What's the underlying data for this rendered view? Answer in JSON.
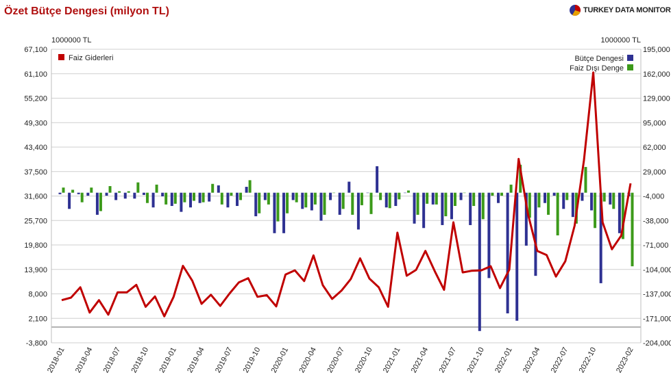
{
  "header": {
    "title": "Özet Bütçe Dengesi (milyon TL)",
    "brand": "TURKEY DATA MONITOR"
  },
  "colors": {
    "title": "#b01010",
    "faiz_giderleri": "#c00000",
    "butce_dengesi": "#2e3192",
    "faiz_disi_denge": "#3c9a1a",
    "grid": "#cfcfcf"
  },
  "chart_data": {
    "type": "bar",
    "title": "Özet Bütçe Dengesi (milyon TL)",
    "left_axis": {
      "unit": "1000000 TL",
      "ticks": [
        "67,100",
        "61,100",
        "55,200",
        "49,300",
        "43,400",
        "37,500",
        "31,600",
        "25,700",
        "19,800",
        "13,900",
        "8,000",
        "2,100",
        "-3,800"
      ],
      "range": [
        -3800,
        67100
      ]
    },
    "right_axis": {
      "unit": "1000000 TL",
      "ticks": [
        "195,000",
        "162,000",
        "129,000",
        "95,000",
        "62,000",
        "29,000",
        "-4,000",
        "-38,000",
        "-71,000",
        "-104,000",
        "-137,000",
        "-171,000",
        "-204,000"
      ],
      "range": [
        -204000,
        195000
      ]
    },
    "x_tick_labels": [
      "2018-01",
      "2018-04",
      "2018-07",
      "2018-10",
      "2019-01",
      "2019-04",
      "2019-07",
      "2019-10",
      "2020-01",
      "2020-04",
      "2020-07",
      "2020-10",
      "2021-01",
      "2021-04",
      "2021-07",
      "2021-10",
      "2022-01",
      "2022-04",
      "2022-07",
      "2022-10",
      "2023-02"
    ],
    "x": [
      "2018-01",
      "2018-02",
      "2018-03",
      "2018-04",
      "2018-05",
      "2018-06",
      "2018-07",
      "2018-08",
      "2018-09",
      "2018-10",
      "2018-11",
      "2018-12",
      "2019-01",
      "2019-02",
      "2019-03",
      "2019-04",
      "2019-05",
      "2019-06",
      "2019-07",
      "2019-08",
      "2019-09",
      "2019-10",
      "2019-11",
      "2019-12",
      "2020-01",
      "2020-02",
      "2020-03",
      "2020-04",
      "2020-05",
      "2020-06",
      "2020-07",
      "2020-08",
      "2020-09",
      "2020-10",
      "2020-11",
      "2020-12",
      "2021-01",
      "2021-02",
      "2021-03",
      "2021-04",
      "2021-05",
      "2021-06",
      "2021-07",
      "2021-08",
      "2021-09",
      "2021-10",
      "2021-11",
      "2021-12",
      "2022-01",
      "2022-02",
      "2022-03",
      "2022-04",
      "2022-05",
      "2022-06",
      "2022-07",
      "2022-08",
      "2022-09",
      "2022-10",
      "2022-11",
      "2022-12",
      "2023-01",
      "2023-02"
    ],
    "legend_left": "top-left",
    "legend_right": "top-right",
    "series": [
      {
        "name": "Faiz Giderleri",
        "kind": "line",
        "axis": "left",
        "values": [
          6500,
          7100,
          9600,
          3500,
          6500,
          3000,
          8400,
          8400,
          10200,
          4900,
          7400,
          2600,
          7300,
          14800,
          11200,
          5600,
          7800,
          5100,
          8100,
          10800,
          11800,
          7300,
          7700,
          5000,
          12700,
          13700,
          11100,
          17300,
          10100,
          6800,
          8800,
          11600,
          16600,
          11700,
          9600,
          4900,
          22800,
          12400,
          13800,
          18400,
          13500,
          9000,
          25300,
          13200,
          13600,
          13700,
          14700,
          9400,
          13900,
          40600,
          27300,
          18400,
          17400,
          12200,
          15900,
          24500,
          40300,
          61500,
          25300,
          18800,
          22100,
          34700
        ]
      },
      {
        "name": "Bütçe Dengesi",
        "kind": "bar",
        "axis": "right",
        "values": [
          -2000,
          -22000,
          -2000,
          -4000,
          -30000,
          -4000,
          -10000,
          -8000,
          -8000,
          -3000,
          -20000,
          -5000,
          -18000,
          -26000,
          -20000,
          -14000,
          -12000,
          10000,
          -20000,
          -18000,
          8000,
          -32000,
          -10000,
          -55000,
          -55000,
          -10000,
          -22000,
          -24000,
          -38000,
          -10000,
          -30000,
          15000,
          -50000,
          0,
          36000,
          -20000,
          -18000,
          0,
          -42000,
          -48000,
          -16000,
          -44000,
          -36000,
          -10000,
          -44000,
          -188000,
          -116000,
          -14000,
          -164000,
          -174000,
          -72000,
          -113000,
          -14000,
          -4000,
          -22000,
          -33000,
          -11000,
          -24000,
          -123000,
          -16000,
          -55000,
          -5000
        ]
      },
      {
        "name": "Faiz Dışı Denge",
        "kind": "bar",
        "axis": "right",
        "values": [
          7000,
          4000,
          -13000,
          7000,
          -25000,
          9000,
          2000,
          2000,
          14000,
          -14000,
          11000,
          -16000,
          -15000,
          -13000,
          -11000,
          -13000,
          12000,
          -16000,
          -4000,
          -10000,
          17000,
          -28000,
          -16000,
          -39000,
          -28000,
          -13000,
          -20000,
          -16000,
          -30000,
          0,
          -22000,
          -30000,
          -17000,
          -29000,
          -10000,
          -21000,
          -9000,
          3000,
          -30000,
          -15000,
          -16000,
          -32000,
          -18000,
          0,
          -18000,
          -36000,
          -4000,
          -4000,
          11000,
          38000,
          -34000,
          -20000,
          -30000,
          -58000,
          -10000,
          -42000,
          35000,
          -48000,
          -12000,
          -22000,
          -63000,
          -100000
        ]
      }
    ]
  }
}
